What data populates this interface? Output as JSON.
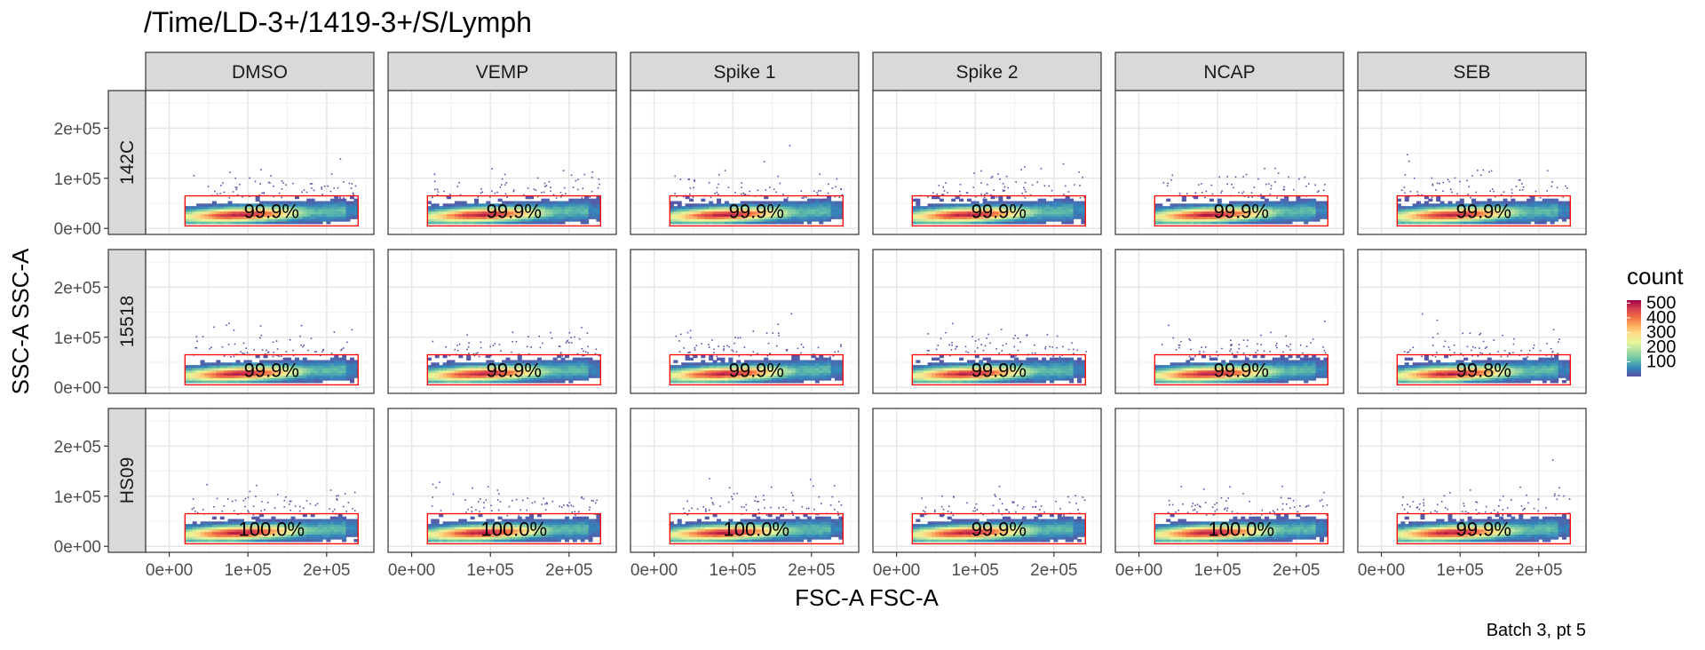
{
  "chart_data": {
    "type": "heatmap",
    "subtype": "faceted flow cytometry density plot with gates",
    "title": "/Time/LD-3+/1419-3+/S/Lymph",
    "xlabel": "FSC-A FSC-A",
    "ylabel": "SSC-A SSC-A",
    "caption": "Batch 3, pt 5",
    "columns": [
      "DMSO",
      "VEMP",
      "Spike 1",
      "Spike 2",
      "NCAP",
      "SEB"
    ],
    "rows": [
      "142C",
      "15518",
      "HS09"
    ],
    "x_ticks": [
      {
        "value": 0,
        "label": "0e+00"
      },
      {
        "value": 100000,
        "label": "1e+05"
      },
      {
        "value": 200000,
        "label": "2e+05"
      }
    ],
    "y_ticks": [
      {
        "value": 0,
        "label": "0e+00"
      },
      {
        "value": 100000,
        "label": "1e+05"
      },
      {
        "value": 200000,
        "label": "2e+05"
      }
    ],
    "xlim": [
      -30000,
      260000
    ],
    "ylim": [
      -12000,
      275000
    ],
    "gate": {
      "x": [
        20000,
        240000
      ],
      "y": [
        5000,
        65000
      ],
      "color": "#ff0000"
    },
    "gate_percentages": [
      [
        "99.9%",
        "99.9%",
        "99.9%",
        "99.9%",
        "99.9%",
        "99.9%"
      ],
      [
        "99.9%",
        "99.9%",
        "99.9%",
        "99.9%",
        "99.9%",
        "99.8%"
      ],
      [
        "100.0%",
        "100.0%",
        "100.0%",
        "99.9%",
        "100.0%",
        "99.9%"
      ]
    ],
    "legend": {
      "title": "count",
      "position": "right",
      "labels": [
        "500",
        "400",
        "300",
        "200",
        "100"
      ],
      "values": [
        500,
        400,
        300,
        200,
        100
      ],
      "range": [
        0,
        520
      ],
      "colors": [
        "#5e4fa2",
        "#3288bd",
        "#66c2a5",
        "#abdda4",
        "#e6f598",
        "#fee08b",
        "#fdae61",
        "#f46d43",
        "#d53e4f",
        "#9e0142"
      ]
    },
    "grid": true,
    "density_center": {
      "x": 90000,
      "y": 28000
    }
  }
}
